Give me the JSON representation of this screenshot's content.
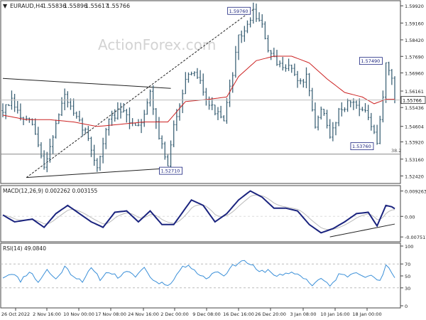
{
  "chart_data": [
    {
      "type": "line",
      "symbol": "EURAUD,H4",
      "ohlc": [
        "1.55836",
        "1.55896",
        "1.55617",
        "1.55766"
      ],
      "watermark": "ActionForex.com",
      "x_ticks": [
        "26 Oct 2022",
        "2 Nov 16:00",
        "10 Nov 00:00",
        "17 Nov 08:00",
        "24 Nov 16:00",
        "2 Dec 00:00",
        "9 Dec 08:00",
        "16 Dec 16:00",
        "26 Dec 20:00",
        "3 Jan 08:00",
        "10 Jan 16:00",
        "18 Jan 00:00"
      ],
      "y_ticks": [
        "1.59920",
        "1.59160",
        "1.58420",
        "1.57690",
        "1.56960",
        "1.56161",
        "1.55436",
        "1.54604",
        "1.53920",
        "1.53160",
        "1.52420"
      ],
      "ylim": [
        1.5215,
        1.6005
      ],
      "last_price_label": "1.55766",
      "last_price": 1.55766,
      "fib_label": "38.2",
      "fib_level": 1.5338,
      "annotations": [
        {
          "text": "1.59760",
          "x": 84,
          "y": 1.5976
        },
        {
          "text": "1.52710",
          "x": 57,
          "y": 1.5271
        },
        {
          "text": "1.57490",
          "x": 129,
          "y": 1.5749
        },
        {
          "text": "1.53760",
          "x": 126,
          "y": 1.5376
        }
      ],
      "price_keypoints": [
        [
          0,
          1.553
        ],
        [
          3,
          1.557
        ],
        [
          6,
          1.55
        ],
        [
          10,
          1.547
        ],
        [
          14,
          1.528
        ],
        [
          18,
          1.547
        ],
        [
          21,
          1.56
        ],
        [
          24,
          1.551
        ],
        [
          28,
          1.544
        ],
        [
          32,
          1.528
        ],
        [
          36,
          1.549
        ],
        [
          40,
          1.553
        ],
        [
          44,
          1.547
        ],
        [
          47,
          1.548
        ],
        [
          50,
          1.561
        ],
        [
          53,
          1.542
        ],
        [
          56,
          1.528
        ],
        [
          58,
          1.546
        ],
        [
          62,
          1.567
        ],
        [
          66,
          1.569
        ],
        [
          70,
          1.556
        ],
        [
          75,
          1.548
        ],
        [
          78,
          1.57
        ],
        [
          80,
          1.585
        ],
        [
          83,
          1.59
        ],
        [
          85,
          1.597
        ],
        [
          88,
          1.59
        ],
        [
          90,
          1.58
        ],
        [
          93,
          1.573
        ],
        [
          97,
          1.573
        ],
        [
          101,
          1.565
        ],
        [
          103,
          1.568
        ],
        [
          106,
          1.545
        ],
        [
          108,
          1.555
        ],
        [
          111,
          1.541
        ],
        [
          114,
          1.553
        ],
        [
          118,
          1.557
        ],
        [
          121,
          1.555
        ],
        [
          124,
          1.55
        ],
        [
          127,
          1.538
        ],
        [
          129,
          1.559
        ],
        [
          130,
          1.575
        ],
        [
          132,
          1.566
        ],
        [
          133,
          1.558
        ]
      ],
      "ma_keypoints": [
        [
          0,
          1.551
        ],
        [
          8,
          1.549
        ],
        [
          16,
          1.549
        ],
        [
          24,
          1.548
        ],
        [
          32,
          1.546
        ],
        [
          40,
          1.547
        ],
        [
          48,
          1.548
        ],
        [
          56,
          1.548
        ],
        [
          62,
          1.557
        ],
        [
          70,
          1.558
        ],
        [
          76,
          1.559
        ],
        [
          80,
          1.568
        ],
        [
          86,
          1.575
        ],
        [
          92,
          1.577
        ],
        [
          98,
          1.577
        ],
        [
          104,
          1.574
        ],
        [
          110,
          1.567
        ],
        [
          116,
          1.561
        ],
        [
          122,
          1.559
        ],
        [
          126,
          1.556
        ],
        [
          130,
          1.558
        ],
        [
          133,
          1.558
        ]
      ],
      "bar_count": 134,
      "trendlines": [
        {
          "name": "upper-channel-line",
          "points": [
            [
              0,
              1.5672
            ],
            [
              57,
              1.5628
            ]
          ]
        },
        {
          "name": "lower-channel-line",
          "points": [
            [
              8,
              1.5235
            ],
            [
              60,
              1.5279
            ]
          ]
        },
        {
          "name": "rising-dashed-line",
          "points": [
            [
              8,
              1.5235
            ],
            [
              85,
              1.5976
            ]
          ]
        }
      ]
    },
    {
      "type": "line",
      "indicator": "MACD(12,26,9) 0.002262 0.003155",
      "y_ticks": [
        "0.009263",
        "0.00",
        "-0.007517"
      ],
      "ylim": [
        -0.0085,
        0.0102
      ],
      "keypoints": [
        [
          0,
          0.0005
        ],
        [
          4,
          -0.002
        ],
        [
          10,
          -0.001
        ],
        [
          14,
          -0.004
        ],
        [
          18,
          0.001
        ],
        [
          22,
          0.004
        ],
        [
          26,
          0.001
        ],
        [
          30,
          -0.002
        ],
        [
          34,
          -0.004
        ],
        [
          38,
          0.0015
        ],
        [
          42,
          0.002
        ],
        [
          46,
          -0.002
        ],
        [
          50,
          0.002
        ],
        [
          54,
          -0.003
        ],
        [
          58,
          -0.003
        ],
        [
          64,
          0.006
        ],
        [
          68,
          0.004
        ],
        [
          72,
          -0.002
        ],
        [
          76,
          0.001
        ],
        [
          80,
          0.006
        ],
        [
          84,
          0.0093
        ],
        [
          88,
          0.007
        ],
        [
          92,
          0.003
        ],
        [
          96,
          0.003
        ],
        [
          100,
          0.002
        ],
        [
          104,
          -0.003
        ],
        [
          108,
          -0.006
        ],
        [
          112,
          -0.0045
        ],
        [
          116,
          -0.002
        ],
        [
          120,
          0.001
        ],
        [
          124,
          0.0015
        ],
        [
          127,
          -0.0035
        ],
        [
          130,
          0.004
        ],
        [
          132,
          0.0035
        ],
        [
          133,
          0.0028
        ]
      ],
      "support_line": [
        [
          111,
          -0.0075
        ],
        [
          133,
          -0.0028
        ]
      ]
    },
    {
      "type": "line",
      "indicator": "RSI(14) 49.0840",
      "y_ticks": [
        "100",
        "70",
        "50",
        "30",
        "0"
      ],
      "ylim": [
        0,
        100
      ],
      "levels": [
        70,
        30
      ],
      "keypoints": [
        [
          0,
          48
        ],
        [
          3,
          55
        ],
        [
          6,
          42
        ],
        [
          9,
          58
        ],
        [
          12,
          40
        ],
        [
          15,
          60
        ],
        [
          18,
          44
        ],
        [
          21,
          65
        ],
        [
          24,
          50
        ],
        [
          27,
          42
        ],
        [
          30,
          62
        ],
        [
          33,
          45
        ],
        [
          36,
          58
        ],
        [
          39,
          48
        ],
        [
          42,
          56
        ],
        [
          45,
          50
        ],
        [
          48,
          64
        ],
        [
          51,
          42
        ],
        [
          54,
          38
        ],
        [
          57,
          36
        ],
        [
          60,
          60
        ],
        [
          63,
          70
        ],
        [
          66,
          55
        ],
        [
          69,
          45
        ],
        [
          72,
          58
        ],
        [
          75,
          52
        ],
        [
          78,
          66
        ],
        [
          81,
          76
        ],
        [
          84,
          70
        ],
        [
          87,
          56
        ],
        [
          90,
          60
        ],
        [
          93,
          50
        ],
        [
          96,
          52
        ],
        [
          99,
          55
        ],
        [
          102,
          48
        ],
        [
          105,
          35
        ],
        [
          108,
          46
        ],
        [
          111,
          32
        ],
        [
          114,
          52
        ],
        [
          117,
          50
        ],
        [
          120,
          58
        ],
        [
          123,
          50
        ],
        [
          126,
          48
        ],
        [
          128,
          40
        ],
        [
          130,
          66
        ],
        [
          131,
          62
        ],
        [
          133,
          49
        ]
      ]
    }
  ]
}
